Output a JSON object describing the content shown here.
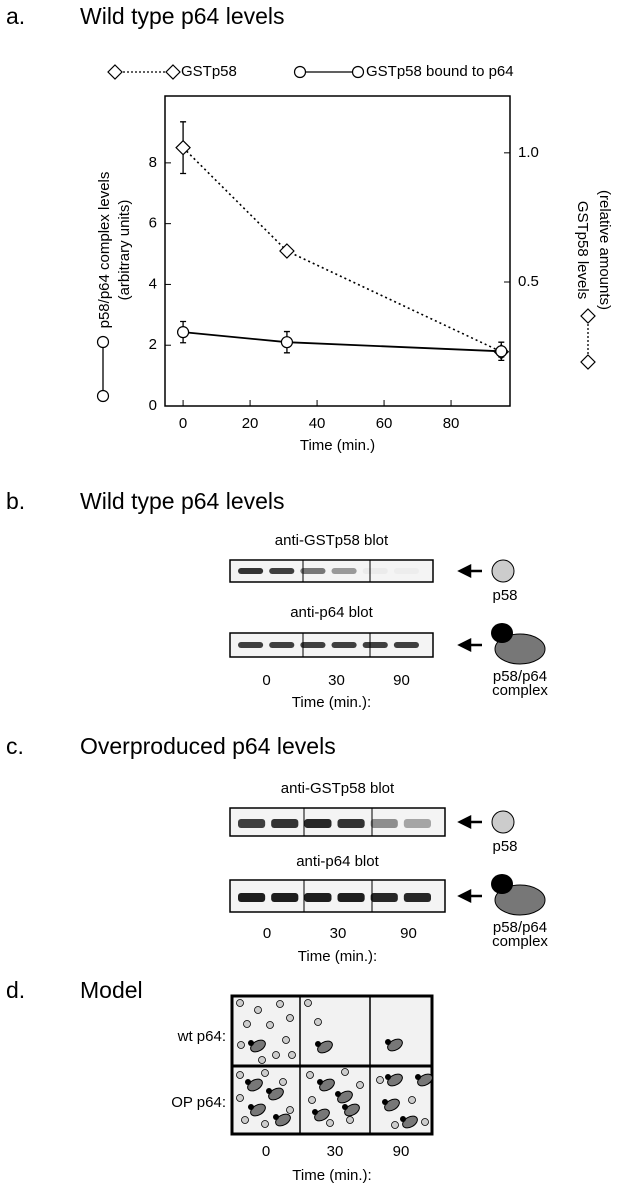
{
  "panels": [
    {
      "label": "a.",
      "title": "Wild type p64 levels"
    },
    {
      "label": "b.",
      "title": "Wild type p64 levels"
    },
    {
      "label": "c.",
      "title": "Overproduced p64 levels"
    },
    {
      "label": "d.",
      "title": "Model"
    }
  ],
  "chart_data": {
    "type": "line",
    "x_label": "Time (min.)",
    "y_label": [
      "p58/p64 complex levels",
      "(arbitrary units)"
    ],
    "y2_label": [
      "GSTp58 levels",
      "(relative amounts)"
    ],
    "xlim": [
      -5.4,
      97.6
    ],
    "xticks": [
      0,
      20,
      40,
      60,
      80
    ],
    "ylim": [
      0,
      10.2
    ],
    "yticks": [
      0,
      2,
      4,
      6,
      8
    ],
    "y2lim": [
      0.02,
      1.22
    ],
    "y2ticks": [
      {
        "value": 0.5,
        "label": "0.5"
      },
      {
        "value": 1,
        "label": "1.0"
      }
    ],
    "series": [
      {
        "name": "GSTp58",
        "axis": "y2",
        "marker": "diamond",
        "dash": true,
        "color": "#000000",
        "x": [
          0,
          31,
          95
        ],
        "values": [
          1.02,
          0.62,
          0.23
        ],
        "errors": [
          0.1,
          0.01,
          0.02
        ]
      },
      {
        "name": "GSTp58 bound to p64",
        "marker": "circle",
        "dash": false,
        "color": "#000000",
        "x": [
          0,
          31,
          95
        ],
        "values": [
          2.43,
          2.1,
          1.8
        ],
        "errors": [
          0.35,
          0.35,
          0.3
        ]
      }
    ]
  },
  "blots": [
    {
      "rows": [
        {
          "title": "anti-GSTp58 blot",
          "protein": [
            "p58"
          ]
        },
        {
          "title": "anti-p64 blot",
          "protein": [
            "p58/p64",
            "complex"
          ]
        }
      ],
      "times": [
        "0",
        "30",
        "90"
      ],
      "time_label": "Time (min.):"
    },
    {
      "rows": [
        {
          "title": "anti-GSTp58 blot",
          "protein": [
            "p58"
          ]
        },
        {
          "title": "anti-p64 blot",
          "protein": [
            "p58/p64",
            "complex"
          ]
        }
      ],
      "times": [
        "0",
        "30",
        "90"
      ],
      "time_label": "Time (min.):"
    }
  ],
  "model": {
    "rows": [
      "wt p64:",
      "OP p64:"
    ],
    "times": [
      "0",
      "30",
      "90"
    ],
    "time_label": "Time (min.):"
  }
}
